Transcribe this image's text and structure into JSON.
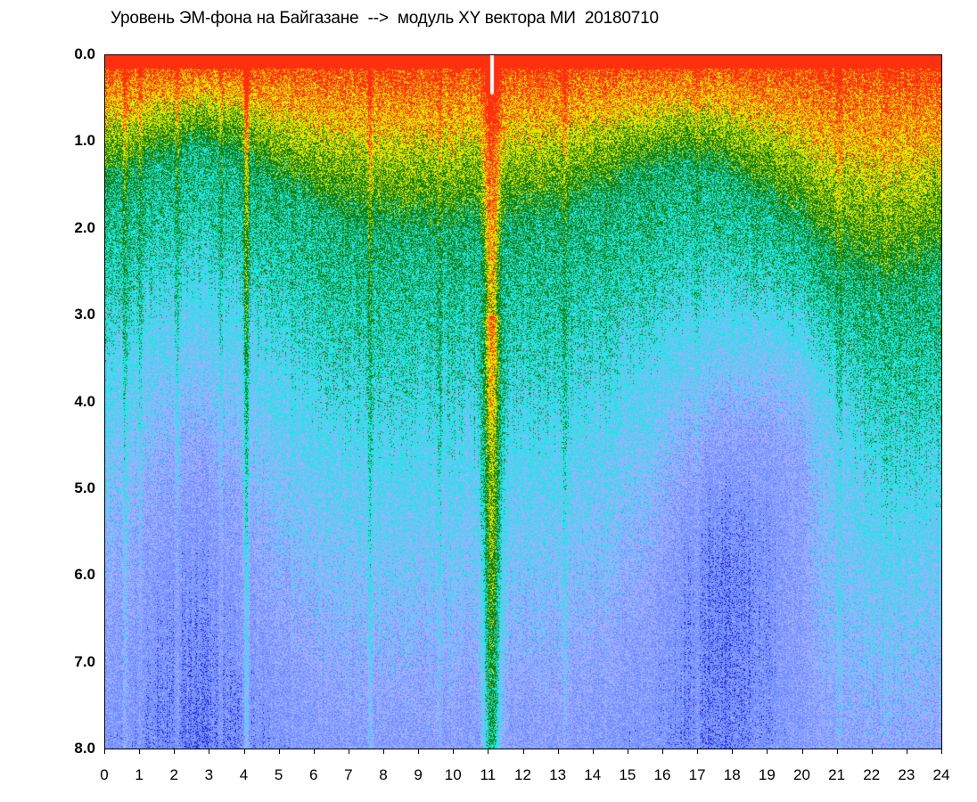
{
  "title": "Уровень ЭМ-фона на Байгазане  -->  модуль XY вектора МИ  20180710",
  "chart_data": {
    "type": "heatmap",
    "title": "Уровень ЭМ-фона на Байгазане  -->  модуль XY вектора МИ  20180710",
    "xlabel": "",
    "ylabel": "",
    "xlim": [
      0,
      24
    ],
    "ylim": [
      8.0,
      0.0
    ],
    "y_axis_inverted": true,
    "x_ticks": [
      "0",
      "1",
      "2",
      "3",
      "4",
      "5",
      "6",
      "7",
      "8",
      "9",
      "10",
      "11",
      "12",
      "13",
      "14",
      "15",
      "16",
      "17",
      "18",
      "19",
      "20",
      "21",
      "22",
      "23",
      "24"
    ],
    "y_ticks": [
      "0.0",
      "1.0",
      "2.0",
      "3.0",
      "4.0",
      "5.0",
      "6.0",
      "7.0",
      "8.0"
    ],
    "colormap": [
      "#2020d0",
      "#6f8cff",
      "#9fb0ff",
      "#1fe5e5",
      "#108010",
      "#e5e500",
      "#ff3010"
    ],
    "colormap_order": "low-to-high",
    "grid": false,
    "notes_visible": {
      "strong_dip_x": 11.1,
      "high_level_hours": [
        21,
        24
      ]
    }
  }
}
